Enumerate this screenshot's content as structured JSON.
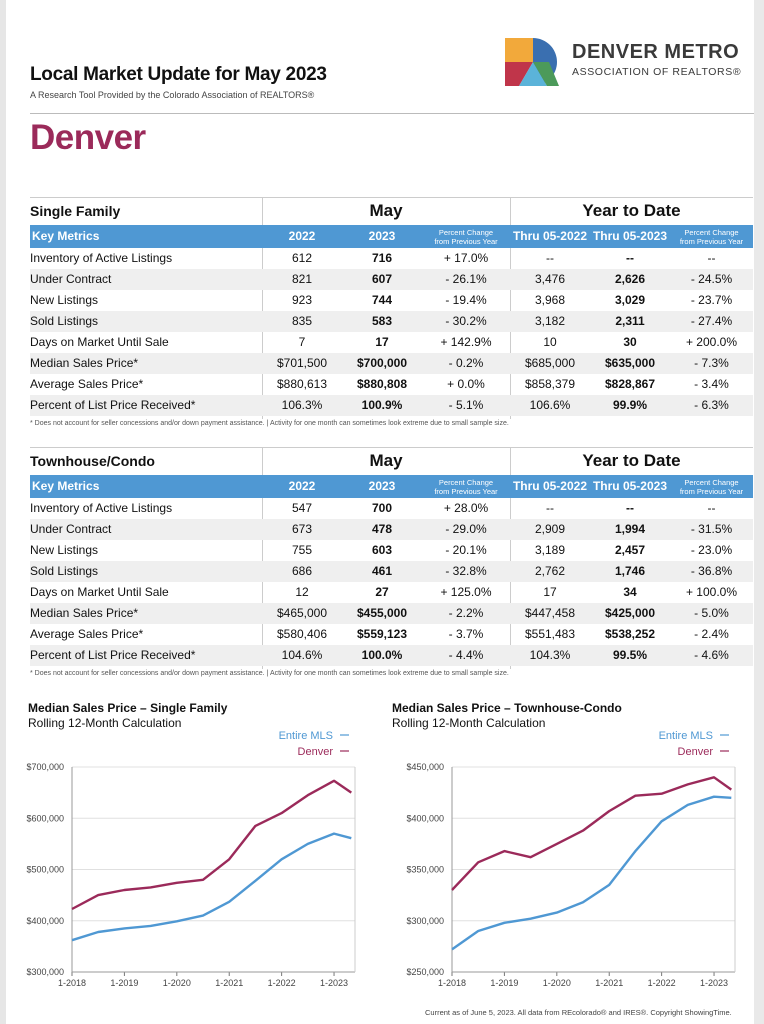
{
  "header": {
    "title": "Local Market Update for May 2023",
    "subtitle": "A Research Tool Provided by the Colorado Association of REALTORS®",
    "logo_line1": "DENVER METRO",
    "logo_line2": "ASSOCIATION OF REALTORS®",
    "city": "Denver"
  },
  "colors": {
    "accent": "#9b2a5a",
    "table_header": "#4f98d3",
    "mls_line": "#4f98d3",
    "city_line": "#9b2a5a"
  },
  "tables": [
    {
      "section": "Single Family",
      "may_label": "May",
      "ytd_label": "Year to Date",
      "columns": [
        "Key Metrics",
        "2022",
        "2023",
        "Percent Change",
        "from Previous Year",
        "Thru 05-2022",
        "Thru 05-2023",
        "Percent Change",
        "from Previous Year"
      ],
      "rows": [
        [
          "Inventory of Active Listings",
          "612",
          "716",
          "+ 17.0%",
          "--",
          "--",
          "--"
        ],
        [
          "Under Contract",
          "821",
          "607",
          "- 26.1%",
          "3,476",
          "2,626",
          "- 24.5%"
        ],
        [
          "New Listings",
          "923",
          "744",
          "- 19.4%",
          "3,968",
          "3,029",
          "- 23.7%"
        ],
        [
          "Sold Listings",
          "835",
          "583",
          "- 30.2%",
          "3,182",
          "2,311",
          "- 27.4%"
        ],
        [
          "Days on Market Until Sale",
          "7",
          "17",
          "+ 142.9%",
          "10",
          "30",
          "+ 200.0%"
        ],
        [
          "Median Sales Price*",
          "$701,500",
          "$700,000",
          "- 0.2%",
          "$685,000",
          "$635,000",
          "- 7.3%"
        ],
        [
          "Average Sales Price*",
          "$880,613",
          "$880,808",
          "+ 0.0%",
          "$858,379",
          "$828,867",
          "- 3.4%"
        ],
        [
          "Percent of List Price Received*",
          "106.3%",
          "100.9%",
          "- 5.1%",
          "106.6%",
          "99.9%",
          "- 6.3%"
        ]
      ],
      "footnote": "* Does not account for seller concessions and/or down payment assistance.  |  Activity for one month can sometimes look extreme due to small sample size."
    },
    {
      "section": "Townhouse/Condo",
      "may_label": "May",
      "ytd_label": "Year to Date",
      "columns": [
        "Key Metrics",
        "2022",
        "2023",
        "Percent Change",
        "from Previous Year",
        "Thru 05-2022",
        "Thru 05-2023",
        "Percent Change",
        "from Previous Year"
      ],
      "rows": [
        [
          "Inventory of Active Listings",
          "547",
          "700",
          "+ 28.0%",
          "--",
          "--",
          "--"
        ],
        [
          "Under Contract",
          "673",
          "478",
          "- 29.0%",
          "2,909",
          "1,994",
          "- 31.5%"
        ],
        [
          "New Listings",
          "755",
          "603",
          "- 20.1%",
          "3,189",
          "2,457",
          "- 23.0%"
        ],
        [
          "Sold Listings",
          "686",
          "461",
          "- 32.8%",
          "2,762",
          "1,746",
          "- 36.8%"
        ],
        [
          "Days on Market Until Sale",
          "12",
          "27",
          "+ 125.0%",
          "17",
          "34",
          "+ 100.0%"
        ],
        [
          "Median Sales Price*",
          "$465,000",
          "$455,000",
          "- 2.2%",
          "$447,458",
          "$425,000",
          "- 5.0%"
        ],
        [
          "Average Sales Price*",
          "$580,406",
          "$559,123",
          "- 3.7%",
          "$551,483",
          "$538,252",
          "- 2.4%"
        ],
        [
          "Percent of List Price Received*",
          "104.6%",
          "100.0%",
          "- 4.4%",
          "104.3%",
          "99.5%",
          "- 4.6%"
        ]
      ],
      "footnote": "* Does not account for seller concessions and/or down payment assistance.  |  Activity for one month can sometimes look extreme due to small sample size."
    }
  ],
  "chart_data": [
    {
      "type": "line",
      "title": "Median Sales Price – Single Family",
      "subtitle": "Rolling 12-Month Calculation",
      "legend": [
        "Entire MLS",
        "Denver"
      ],
      "legend_placement": "top-right",
      "x_ticks": [
        "1-2018",
        "1-2019",
        "1-2020",
        "1-2021",
        "1-2022",
        "1-2023"
      ],
      "y_ticks": [
        "$300,000",
        "$400,000",
        "$500,000",
        "$600,000",
        "$700,000"
      ],
      "ylim": [
        300000,
        700000
      ],
      "x": [
        2018.0,
        2018.5,
        2019.0,
        2019.5,
        2020.0,
        2020.5,
        2021.0,
        2021.5,
        2022.0,
        2022.5,
        2023.0,
        2023.33
      ],
      "series": [
        {
          "name": "Entire MLS",
          "values": [
            362000,
            378000,
            385000,
            390000,
            399000,
            410000,
            437000,
            478000,
            520000,
            550000,
            570000,
            561000
          ]
        },
        {
          "name": "Denver",
          "values": [
            423000,
            450000,
            460000,
            465000,
            474000,
            480000,
            520000,
            585000,
            610000,
            645000,
            673000,
            650000
          ]
        }
      ]
    },
    {
      "type": "line",
      "title": "Median Sales Price – Townhouse-Condo",
      "subtitle": "Rolling 12-Month Calculation",
      "legend": [
        "Entire MLS",
        "Denver"
      ],
      "legend_placement": "top-right",
      "x_ticks": [
        "1-2018",
        "1-2019",
        "1-2020",
        "1-2021",
        "1-2022",
        "1-2023"
      ],
      "y_ticks": [
        "$250,000",
        "$300,000",
        "$350,000",
        "$400,000",
        "$450,000"
      ],
      "ylim": [
        250000,
        450000
      ],
      "x": [
        2018.0,
        2018.5,
        2019.0,
        2019.5,
        2020.0,
        2020.5,
        2021.0,
        2021.5,
        2022.0,
        2022.5,
        2023.0,
        2023.33
      ],
      "series": [
        {
          "name": "Entire MLS",
          "values": [
            272000,
            290000,
            298000,
            302000,
            308000,
            318000,
            335000,
            368000,
            397000,
            413000,
            421000,
            420000
          ]
        },
        {
          "name": "Denver",
          "values": [
            330000,
            357000,
            368000,
            362000,
            375000,
            388000,
            407000,
            422000,
            424000,
            433000,
            440000,
            428000
          ]
        }
      ]
    }
  ],
  "footer": "Current as of June 5, 2023. All data from REcolorado® and IRES®. Copyright ShowingTime."
}
